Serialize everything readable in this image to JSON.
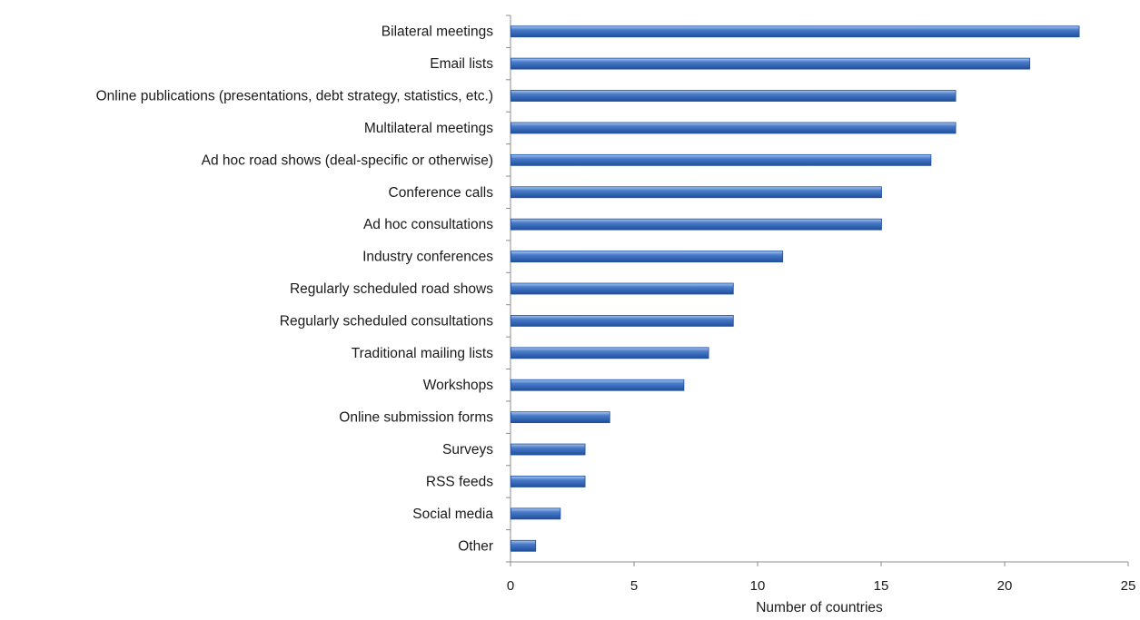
{
  "chart_data": {
    "type": "bar",
    "orientation": "horizontal",
    "categories": [
      "Bilateral meetings",
      "Email lists",
      "Online publications (presentations, debt strategy, statistics, etc.)",
      "Multilateral meetings",
      "Ad hoc road shows (deal-specific or otherwise)",
      "Conference calls",
      "Ad hoc consultations",
      "Industry conferences",
      "Regularly scheduled road shows",
      "Regularly scheduled consultations",
      "Traditional mailing lists",
      "Workshops",
      "Online submission forms",
      "Surveys",
      "RSS feeds",
      "Social media",
      "Other"
    ],
    "values": [
      23,
      21,
      18,
      18,
      17,
      15,
      15,
      11,
      9,
      9,
      8,
      7,
      4,
      3,
      3,
      2,
      1
    ],
    "title": "",
    "xlabel": "Number of countries",
    "ylabel": "",
    "xlim": [
      0,
      25
    ],
    "xticks": [
      0,
      5,
      10,
      15,
      20,
      25
    ],
    "grid": false,
    "legend": "none",
    "bar_color": "#4a7cc9",
    "bar_color_dark": "#1f4f9e",
    "bar_color_light": "#a9c6f0"
  }
}
